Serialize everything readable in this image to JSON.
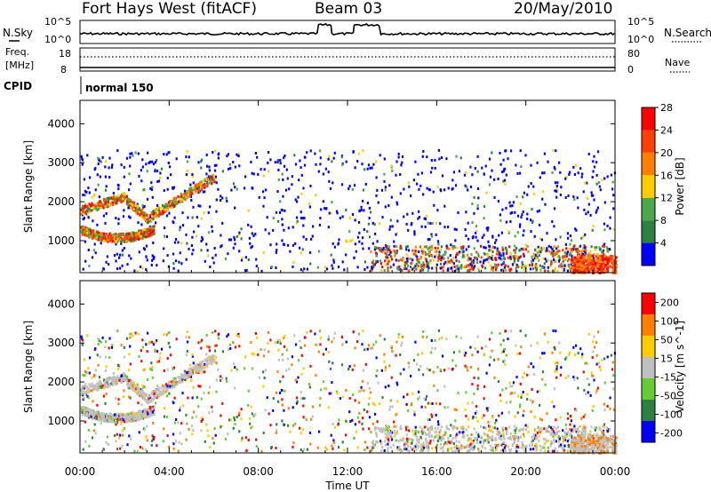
{
  "header": {
    "station": "Fort Hays West (fitACF)",
    "beam": "Beam 03",
    "date": "20/May/2010"
  },
  "noise_panel": {
    "left_label": "N.Sky",
    "right_label": "N.Search",
    "left_ticks": [
      "10^5",
      "10^0"
    ],
    "right_ticks": [
      "10^5",
      "10^0"
    ]
  },
  "freq_panel": {
    "left_label_1": "Freq.",
    "left_label_2": "[MHz]",
    "right_label": "Nave",
    "left_ticks": [
      "18",
      "8"
    ],
    "right_ticks": [
      "80",
      "0"
    ]
  },
  "cpid": {
    "label": "CPID",
    "value": "normal 150"
  },
  "chart_data": {
    "type": "heatmap",
    "x_axis": {
      "label": "Time UT",
      "ticks": [
        "00:00",
        "04:00",
        "08:00",
        "12:00",
        "16:00",
        "20:00",
        "00:00"
      ],
      "range_hours": [
        0,
        24
      ]
    },
    "y_axis": {
      "label": "Slant Range [km]",
      "ticks": [
        1000,
        2000,
        3000,
        4000
      ],
      "range": [
        180,
        4600
      ]
    },
    "panels": [
      {
        "name": "power",
        "colorbar_label": "Power [dB]",
        "colorbar_ticks": [
          4,
          8,
          12,
          16,
          20,
          24,
          28
        ],
        "colors": [
          "#0000ff",
          "#2c8040",
          "#4ba84b",
          "#ffcc00",
          "#ff8000",
          "#ff4000",
          "#ff0000"
        ]
      },
      {
        "name": "velocity",
        "colorbar_label": "Velocity [m s^-1]",
        "colorbar_ticks": [
          200,
          100,
          50,
          15,
          -15,
          -50,
          -100,
          -200
        ],
        "colors": [
          "#0000ff",
          "#2c8040",
          "#66cc33",
          "#c0c0c0",
          "#ffcc00",
          "#ff8000",
          "#ff0000"
        ]
      }
    ],
    "noise_series": {
      "name": "N.Sky",
      "segments": [
        {
          "hours": [
            0,
            10.7
          ],
          "level": "low"
        },
        {
          "hours": [
            10.7,
            11.3
          ],
          "level": "high"
        },
        {
          "hours": [
            11.3,
            12.3
          ],
          "level": "low"
        },
        {
          "hours": [
            12.3,
            13.5
          ],
          "level": "high"
        },
        {
          "hours": [
            13.5,
            24
          ],
          "level": "low"
        }
      ]
    }
  }
}
